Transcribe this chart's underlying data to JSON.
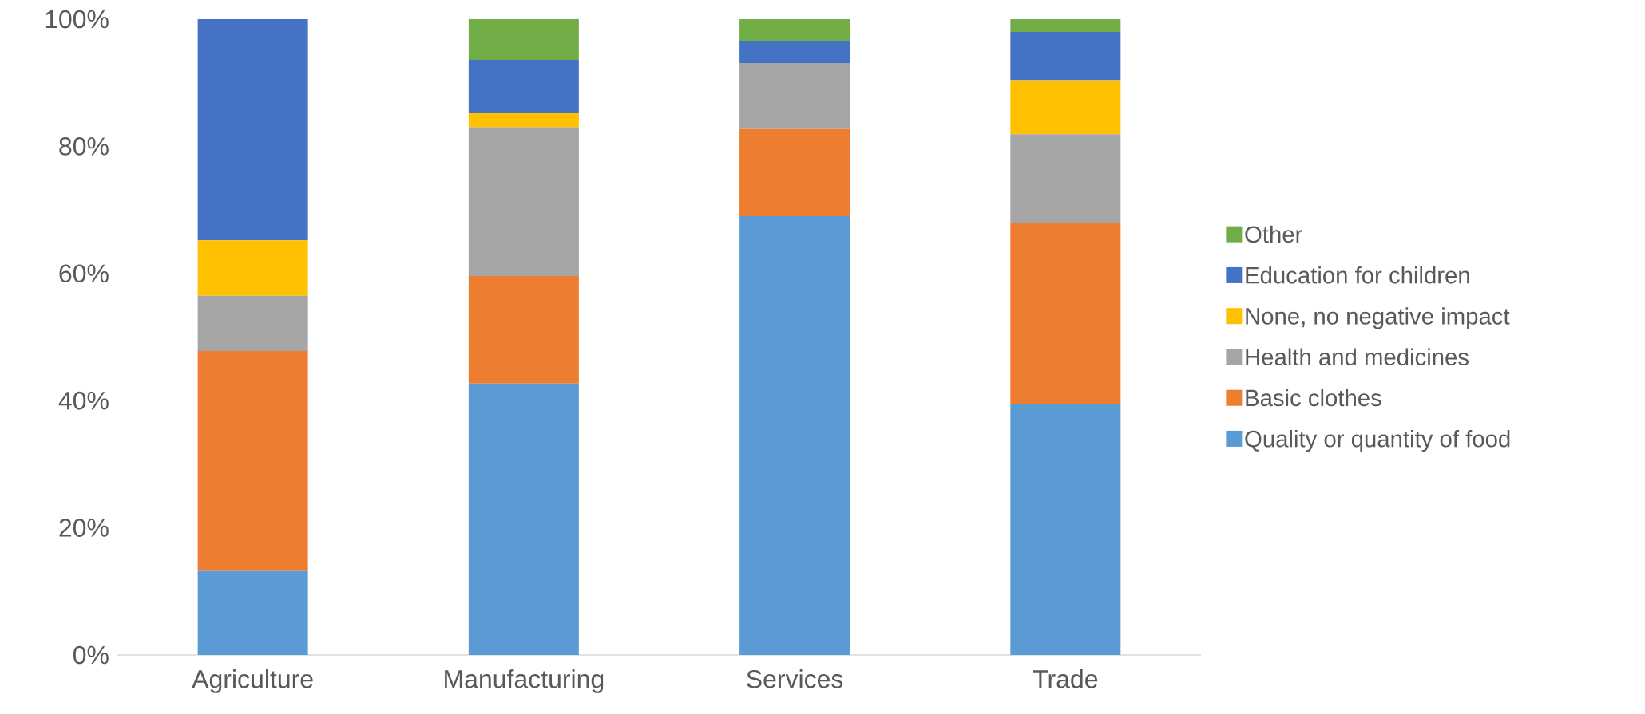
{
  "chart_data": {
    "type": "bar",
    "stacked": true,
    "categories": [
      "Agriculture",
      "Manufacturing",
      "Services",
      "Trade"
    ],
    "series": [
      {
        "name": "Quality or quantity of food",
        "color": "#5b9bd5",
        "values": [
          13.2,
          42.7,
          69.0,
          39.5
        ]
      },
      {
        "name": "Basic clothes",
        "color": "#ed7d31",
        "values": [
          34.6,
          16.9,
          13.7,
          28.4
        ]
      },
      {
        "name": "Health and medicines",
        "color": "#a5a5a5",
        "values": [
          8.7,
          23.4,
          10.4,
          14.0
        ]
      },
      {
        "name": "None, no negative impact",
        "color": "#ffc000",
        "values": [
          8.7,
          2.2,
          0,
          8.5
        ]
      },
      {
        "name": "Education for children",
        "color": "#4472c4",
        "values": [
          34.8,
          8.4,
          3.4,
          7.6
        ]
      },
      {
        "name": "Other",
        "color": "#70ad47",
        "values": [
          0,
          6.4,
          3.5,
          2.0
        ]
      }
    ],
    "ylim": [
      0,
      100
    ],
    "yticks": [
      {
        "value": 0,
        "label": "0%"
      },
      {
        "value": 20,
        "label": "20%"
      },
      {
        "value": 40,
        "label": "40%"
      },
      {
        "value": 60,
        "label": "60%"
      },
      {
        "value": 80,
        "label": "80%"
      },
      {
        "value": 100,
        "label": "100%"
      }
    ],
    "legend": "right"
  }
}
